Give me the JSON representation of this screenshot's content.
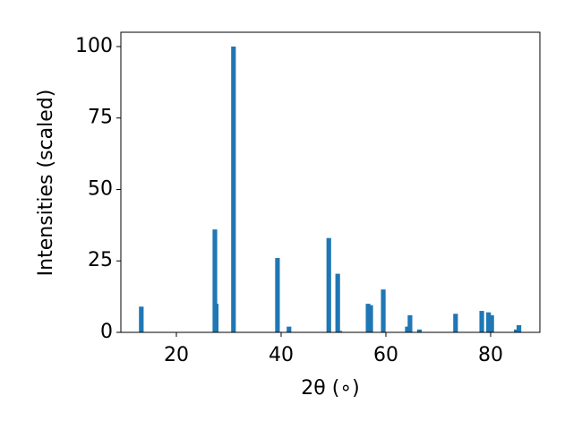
{
  "chart_data": {
    "type": "bar",
    "x_label": "2θ (∘)",
    "y_label": "Intensities (scaled)",
    "x": [
      13.3,
      27.35,
      27.6,
      30.9,
      39.3,
      41.5,
      49.1,
      50.8,
      51.2,
      56.6,
      57.1,
      59.5,
      64.1,
      64.6,
      66.4,
      73.3,
      78.3,
      79.6,
      80.2,
      84.9,
      85.4
    ],
    "values": [
      9,
      36,
      10,
      100,
      26,
      2,
      33,
      20.5,
      0.5,
      10,
      9.5,
      15,
      2,
      6,
      1,
      6.5,
      7.5,
      7,
      6,
      1,
      2.5
    ],
    "color": "#1f77b4",
    "xlim": [
      9.4,
      89.4
    ],
    "ylim": [
      0,
      105
    ],
    "xticks": [
      20,
      40,
      60,
      80
    ],
    "yticks": [
      0,
      25,
      50,
      75,
      100
    ]
  }
}
